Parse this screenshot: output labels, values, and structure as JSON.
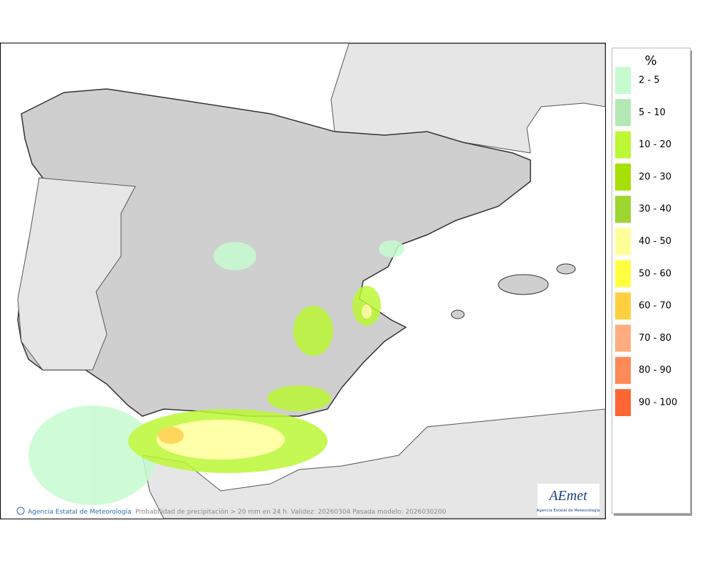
{
  "legend": {
    "title": "%",
    "items": [
      {
        "label": "2 - 5",
        "color": "#c6fbd0"
      },
      {
        "label": "5 - 10",
        "color": "#b3e8b5"
      },
      {
        "label": "10 - 20",
        "color": "#bdf736"
      },
      {
        "label": "20 - 30",
        "color": "#a6e000"
      },
      {
        "label": "30 - 40",
        "color": "#9dd630"
      },
      {
        "label": "40 - 50",
        "color": "#ffff99"
      },
      {
        "label": "50 - 60",
        "color": "#ffff40"
      },
      {
        "label": "60 - 70",
        "color": "#ffcf40"
      },
      {
        "label": "70 - 80",
        "color": "#ffad80"
      },
      {
        "label": "80 - 90",
        "color": "#ff8a58"
      },
      {
        "label": "90 - 100",
        "color": "#ff6633"
      }
    ]
  },
  "footer": {
    "credit": "Agencia Estatal de Meteorología",
    "caption": "Probabilidad de precipitación > 20 mm en 24 h. Validez: 20260304 Pasada modelo: 2026030200"
  },
  "logo": {
    "name": "AEmet",
    "subtitle": "Agencia Estatal de Meteorología"
  }
}
